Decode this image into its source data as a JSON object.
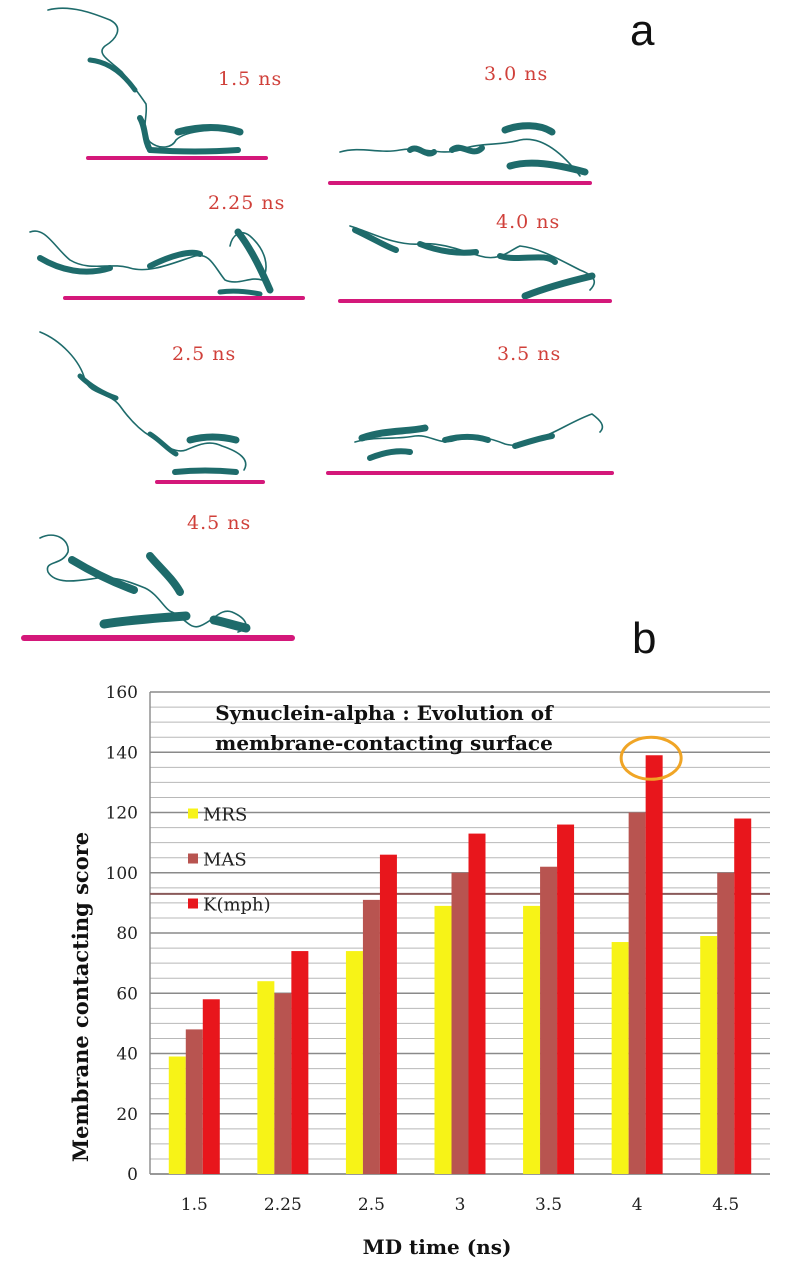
{
  "panel_a": {
    "letter": "a",
    "snapshots": [
      {
        "label": "1.5 ns"
      },
      {
        "label": "3.0 ns"
      },
      {
        "label": "2.25 ns"
      },
      {
        "label": "4.0 ns"
      },
      {
        "label": "2.5 ns"
      },
      {
        "label": "3.5 ns"
      },
      {
        "label": "4.5 ns"
      }
    ]
  },
  "panel_b": {
    "letter": "b"
  },
  "colors": {
    "membrane": "#d4187a",
    "protein": "#1e6b6b",
    "time_label": "#d0403a",
    "MRS": "#f7f317",
    "MAS": "#b85450",
    "K(mph)": "#e8161c",
    "highlight_circle": "#f0a526"
  },
  "chart_data": {
    "type": "bar",
    "title": "Synuclein-alpha : Evolution of membrane-contacting surface",
    "title_lines": [
      "Synuclein-alpha : Evolution of",
      "membrane-contacting surface"
    ],
    "xlabel": "MD time (ns)",
    "ylabel": "Membrane contacting score",
    "categories": [
      "1.5",
      "2.25",
      "2.5",
      "3",
      "3.5",
      "4",
      "4.5"
    ],
    "series": [
      {
        "name": "MRS",
        "values": [
          39,
          64,
          74,
          89,
          89,
          77,
          79
        ]
      },
      {
        "name": "MAS",
        "values": [
          48,
          60,
          91,
          100,
          102,
          120,
          100
        ]
      },
      {
        "name": "K(mph)",
        "values": [
          58,
          74,
          106,
          113,
          116,
          139,
          118
        ]
      }
    ],
    "ylim": [
      0,
      160
    ],
    "yticks": [
      0,
      20,
      40,
      60,
      80,
      100,
      120,
      140,
      160
    ],
    "minor_gridline_step": 5,
    "reference_line": 93,
    "highlight": {
      "category": "4",
      "series": "K(mph)"
    },
    "legend_placement": "left, inside plot",
    "grid": true
  }
}
